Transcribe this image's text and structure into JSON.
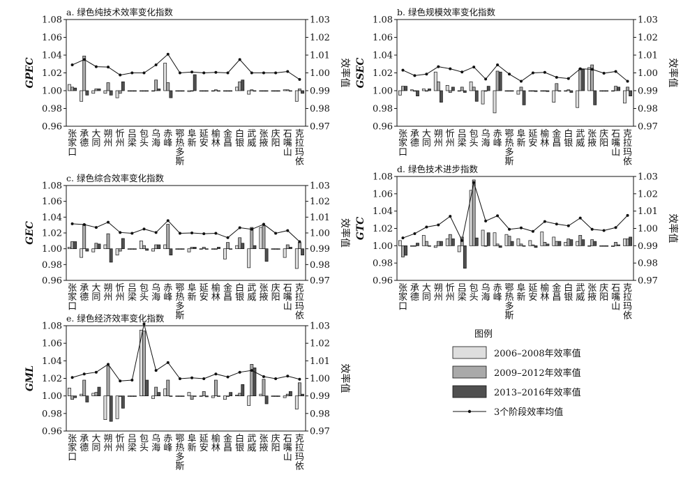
{
  "chart_data": [
    {
      "id": "a",
      "type": "bar+line",
      "title": "a. 绿色纯技术效率变化指数",
      "ylabel": "GPEC",
      "y2label": "效率值",
      "ylim": [
        0.96,
        1.08
      ],
      "y2lim": [
        0.97,
        1.03
      ],
      "yticks": [
        "0.96",
        "0.98",
        "1.00",
        "1.02",
        "1.04",
        "1.06",
        "1.08"
      ],
      "y2ticks": [
        "0.97",
        "0.98",
        "0.99",
        "1.00",
        "1.01",
        "1.02",
        "1.03"
      ],
      "categories": [
        "张家口",
        "承德",
        "大同",
        "朔州",
        "忻州",
        "吕梁",
        "包头",
        "乌海",
        "赤峰",
        "鄂热多斯",
        "阜新",
        "延安",
        "榆林",
        "金昌",
        "白银",
        "武威",
        "张掖",
        "庆阳",
        "石嘴山",
        "克拉玛依"
      ],
      "series": [
        {
          "name": "2006–2008年效率值",
          "values": [
            1.007,
            0.988,
            0.997,
            0.997,
            0.992,
            1.0,
            1.0,
            1.0,
            1.031,
            1.0,
            0.999,
            1.0,
            1.0,
            1.0,
            1.004,
            0.996,
            1.0,
            1.0,
            1.001,
            0.988
          ]
        },
        {
          "name": "2009–2012年效率值",
          "values": [
            1.004,
            1.039,
            1.002,
            1.009,
            0.997,
            1.0,
            1.0,
            1.012,
            1.009,
            1.0,
            1.0,
            1.0,
            1.001,
            1.0,
            1.01,
            1.001,
            1.0,
            1.0,
            1.001,
            1.002
          ]
        },
        {
          "name": "2013–2016年效率值",
          "values": [
            1.003,
            0.995,
            1.002,
            0.995,
            1.01,
            1.0,
            1.0,
            1.002,
            0.992,
            1.0,
            1.018,
            1.0,
            1.0,
            1.0,
            1.012,
            1.0,
            1.0,
            1.0,
            1.0,
            0.997
          ]
        },
        {
          "name": "3个阶段效率均值",
          "values": [
            1.0045,
            1.0075,
            1.0035,
            1.0033,
            0.9988,
            1.0,
            1.0,
            1.0045,
            1.0105,
            1.0,
            1.0005,
            1.0,
            1.0003,
            1.0,
            1.0075,
            1.0,
            1.0,
            1.0,
            1.0008,
            0.9963
          ]
        }
      ]
    },
    {
      "id": "b",
      "type": "bar+line",
      "title": "b. 绿色规模效率变化指数",
      "ylabel": "GSEC",
      "y2label": "效率值",
      "ylim": [
        0.96,
        1.08
      ],
      "y2lim": [
        0.97,
        1.03
      ],
      "yticks": [
        "0.96",
        "0.98",
        "1.00",
        "1.02",
        "1.04",
        "1.06",
        "1.08"
      ],
      "y2ticks": [
        "0.97",
        "0.98",
        "0.99",
        "1.00",
        "1.01",
        "1.02",
        "1.03"
      ],
      "categories": [
        "张家口",
        "承德",
        "大同",
        "朔州",
        "忻州",
        "吕梁",
        "包头",
        "乌海",
        "赤峰",
        "鄂热多斯",
        "阜新",
        "延安",
        "榆林",
        "金昌",
        "白银",
        "武威",
        "张掖",
        "庆阳",
        "石嘴山",
        "克拉玛依"
      ],
      "series": [
        {
          "name": "2006–2008年效率值",
          "values": [
            0.995,
            1.001,
            1.002,
            1.021,
            1.006,
            1.0,
            1.01,
            0.985,
            0.975,
            1.0,
            0.996,
            1.0,
            1.0,
            0.987,
            1.0,
            0.981,
            1.026,
            1.0,
            1.0,
            0.986
          ]
        },
        {
          "name": "2009–2012年效率值",
          "values": [
            1.005,
            1.0,
            1.0,
            1.01,
            0.998,
            1.004,
            1.004,
            1.0,
            1.022,
            1.0,
            1.004,
            1.0,
            1.0,
            1.008,
            1.001,
            1.025,
            1.029,
            1.0,
            1.005,
            1.004
          ]
        },
        {
          "name": "2013–2016年效率值",
          "values": [
            1.005,
            0.994,
            1.002,
            0.987,
            1.004,
            0.998,
            0.988,
            1.005,
            1.021,
            1.0,
            0.984,
            0.999,
            0.999,
            1.0,
            0.998,
            1.024,
            0.984,
            1.0,
            1.004,
            0.994
          ]
        },
        {
          "name": "3个阶段效率均值",
          "values": [
            1.0015,
            0.9985,
            0.9993,
            1.0035,
            1.0023,
            1.0005,
            1.0033,
            0.9965,
            1.0045,
            0.9993,
            0.9953,
            1.0,
            1.0003,
            0.9975,
            0.9968,
            1.0023,
            1.002,
            0.9998,
            1.0008,
            0.9953
          ]
        }
      ]
    },
    {
      "id": "c",
      "type": "bar+line",
      "title": "c. 绿色综合效率变化指数",
      "ylabel": "GEC",
      "y2label": "效率值",
      "ylim": [
        0.96,
        1.08
      ],
      "y2lim": [
        0.97,
        1.03
      ],
      "yticks": [
        "0.96",
        "0.98",
        "1.00",
        "1.02",
        "1.04",
        "1.06",
        "1.08"
      ],
      "y2ticks": [
        "0.97",
        "0.98",
        "0.99",
        "1.00",
        "1.01",
        "1.02",
        "1.03"
      ],
      "categories": [
        "张家口",
        "承德",
        "大同",
        "朔州",
        "忻州",
        "吕梁",
        "包头",
        "乌海",
        "赤峰",
        "鄂热多斯",
        "阜新",
        "延安",
        "榆林",
        "金昌",
        "白银",
        "武威",
        "张掖",
        "庆阳",
        "石嘴山",
        "克拉玛依"
      ],
      "series": [
        {
          "name": "2006–2008年效率值",
          "values": [
            1.002,
            0.989,
            0.996,
            1.005,
            0.992,
            1.0,
            1.01,
            0.997,
            1.005,
            1.0,
            0.996,
            1.0,
            1.0,
            0.987,
            1.004,
            0.976,
            1.027,
            1.0,
            0.989,
            0.975
          ]
        },
        {
          "name": "2009–2012年效率值",
          "values": [
            1.009,
            1.031,
            1.007,
            1.019,
            0.997,
            1.0,
            1.004,
            1.005,
            1.031,
            1.0,
            1.002,
            1.002,
            1.0,
            1.008,
            1.014,
            1.027,
            1.029,
            1.0,
            1.005,
            1.008
          ]
        },
        {
          "name": "2013–2016年效率值",
          "values": [
            1.009,
            0.997,
            1.006,
            0.983,
            1.013,
            1.0,
            0.998,
            1.005,
            0.992,
            1.0,
            1.002,
            1.0,
            1.002,
            1.0,
            1.007,
            1.004,
            0.984,
            1.0,
            1.002,
            0.992
          ]
        },
        {
          "name": "3个阶段效率均值",
          "values": [
            1.0058,
            1.0053,
            1.0035,
            1.0068,
            1.0003,
            0.9998,
            1.0025,
            1.0003,
            1.0078,
            0.9998,
            1.0,
            0.9995,
            0.9998,
            0.997,
            1.0033,
            1.0023,
            1.0055,
            0.9998,
            1.0015,
            0.9945
          ]
        }
      ]
    },
    {
      "id": "d",
      "type": "bar+line",
      "title": "d. 绿色技术进步指数",
      "ylabel": "GTC",
      "y2label": "效率值",
      "ylim": [
        0.96,
        1.08
      ],
      "y2lim": [
        0.97,
        1.03
      ],
      "yticks": [
        "0.96",
        "0.98",
        "1.00",
        "1.02",
        "1.04",
        "1.06",
        "1.08"
      ],
      "y2ticks": [
        "0.97",
        "0.98",
        "0.99",
        "1.00",
        "1.01",
        "1.02",
        "1.03"
      ],
      "categories": [
        "张家口",
        "承德",
        "大同",
        "朔州",
        "忻州",
        "吕梁",
        "包头",
        "乌海",
        "赤峰",
        "鄂热多斯",
        "阜新",
        "延安",
        "榆林",
        "金昌",
        "白银",
        "武威",
        "张掖",
        "庆阳",
        "石嘴山",
        "克拉玛依"
      ],
      "series": [
        {
          "name": "2006–2008年效率值",
          "values": [
            1.006,
            1.0,
            1.012,
            0.998,
            1.008,
            0.993,
            1.064,
            1.018,
            1.015,
            1.013,
            1.008,
            1.006,
            1.016,
            1.01,
            1.004,
            1.005,
            1.0,
            1.0,
            0.999,
            1.008
          ]
        },
        {
          "name": "2009–2012年效率值",
          "values": [
            0.987,
            1.0,
            1.005,
            1.005,
            1.013,
            1.01,
            1.076,
            1.0,
            1.002,
            1.011,
            1.002,
            1.001,
            1.004,
            1.005,
            1.008,
            1.012,
            1.007,
            1.0,
            1.004,
            1.008
          ]
        },
        {
          "name": "2013–2016年效率值",
          "values": [
            0.989,
            1.003,
            1.0,
            1.005,
            1.008,
            0.974,
            1.009,
            1.015,
            0.998,
            1.005,
            1.0,
            0.998,
            1.002,
            1.005,
            1.007,
            1.007,
            1.005,
            1.0,
            1.001,
            1.01
          ]
        },
        {
          "name": "3个阶段效率均值",
          "values": [
            0.9945,
            0.997,
            1.0008,
            1.002,
            1.007,
            0.993,
            1.0265,
            1.0043,
            1.0073,
            0.9995,
            1.0003,
            0.9983,
            1.004,
            1.0025,
            1.0015,
            1.006,
            0.9995,
            0.9988,
            1.0005,
            1.0075
          ]
        }
      ]
    },
    {
      "id": "e",
      "type": "bar+line",
      "title": "e. 绿色经济效率变化指数",
      "ylabel": "GML",
      "y2label": "效率值",
      "ylim": [
        0.96,
        1.08
      ],
      "y2lim": [
        0.97,
        1.03
      ],
      "yticks": [
        "0.96",
        "0.98",
        "1.00",
        "1.02",
        "1.04",
        "1.06",
        "1.08"
      ],
      "y2ticks": [
        "0.97",
        "0.98",
        "0.99",
        "1.00",
        "1.01",
        "1.02",
        "1.03"
      ],
      "categories": [
        "张家口",
        "承德",
        "大同",
        "朔州",
        "忻州",
        "吕梁",
        "包头",
        "乌海",
        "赤峰",
        "鄂热多斯",
        "阜新",
        "延安",
        "榆林",
        "金昌",
        "白银",
        "武威",
        "张掖",
        "庆阳",
        "石嘴山",
        "克拉玛依"
      ],
      "series": [
        {
          "name": "2006–2008年效率值",
          "values": [
            1.009,
            1.002,
            1.003,
            0.973,
            0.974,
            1.0,
            1.075,
            0.997,
            1.008,
            1.0,
            1.004,
            1.0,
            0.998,
            0.996,
            1.001,
            0.989,
            1.002,
            1.0,
            0.998,
            0.985
          ]
        },
        {
          "name": "2009–2012年效率值",
          "values": [
            0.996,
            1.018,
            1.004,
            1.034,
            1.0,
            1.0,
            1.074,
            1.01,
            1.018,
            1.0,
            0.996,
            1.005,
            1.018,
            1.0,
            1.003,
            1.036,
            1.019,
            1.0,
            1.002,
            1.015
          ]
        },
        {
          "name": "2013–2016年效率值",
          "values": [
            0.998,
            0.993,
            1.01,
            0.971,
            0.986,
            1.0,
            1.018,
            1.004,
            1.0,
            1.0,
            1.0,
            0.999,
            1.0,
            1.004,
            1.013,
            1.032,
            0.991,
            1.0,
            1.005,
            1.002
          ]
        },
        {
          "name": "3个阶段效率均值",
          "values": [
            1.0005,
            1.0025,
            1.0035,
            1.008,
            0.9985,
            0.999,
            1.031,
            1.0045,
            1.009,
            0.9998,
            1.0003,
            0.9998,
            1.0025,
            1.0008,
            1.0035,
            1.0045,
            1.001,
            0.9998,
            1.0013,
            0.9995
          ]
        }
      ]
    }
  ],
  "legend": {
    "title": "图例",
    "items": [
      {
        "label": "2006–2008年效率值",
        "kind": "bar",
        "color": "#dedede"
      },
      {
        "label": "2009–2012年效率值",
        "kind": "bar",
        "color": "#a9a9a9"
      },
      {
        "label": "2013–2016年效率值",
        "kind": "bar",
        "color": "#505050"
      },
      {
        "label": "3个阶段效率均值",
        "kind": "line",
        "color": "#111111"
      }
    ]
  },
  "colors": {
    "bar1": "#dedede",
    "bar2": "#a9a9a9",
    "bar3": "#505050",
    "line": "#111111",
    "frame": "#111111"
  }
}
